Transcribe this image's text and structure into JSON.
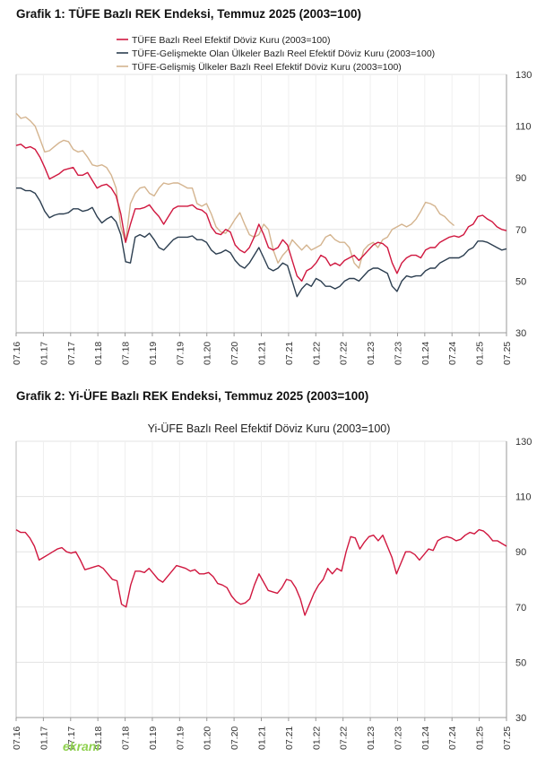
{
  "headings": {
    "chart1": "Grafik 1: TÜFE Bazlı REK Endeksi, Temmuz 2025 (2003=100)",
    "chart2": "Grafik 2: Yi-ÜFE Bazlı REK Endeksi, Temmuz 2025 (2003=100)"
  },
  "logo_text": "ekranı",
  "chart_data": [
    {
      "type": "line",
      "title": "",
      "ylim": [
        30,
        130
      ],
      "yticks": [
        30,
        50,
        70,
        90,
        110,
        130
      ],
      "x_tick_labels": [
        "07.16",
        "01.17",
        "07.17",
        "01.18",
        "07.18",
        "01.19",
        "07.19",
        "01.20",
        "07.20",
        "01.21",
        "07.21",
        "01.22",
        "07.22",
        "01.23",
        "07.23",
        "01.24",
        "07.24",
        "01.25",
        "07.25"
      ],
      "grid": true,
      "legend_position": "top-left",
      "series": [
        {
          "name": "TÜFE  Bazlı Reel Efektif Döviz Kuru (2003=100)",
          "color": "#d0173f",
          "values": [
            102.5,
            103,
            101.5,
            102,
            101,
            98,
            94,
            89.5,
            90.5,
            91.5,
            93,
            93.5,
            94,
            91,
            91,
            92,
            89,
            86,
            87,
            87.5,
            86,
            83,
            76,
            65,
            72,
            78,
            78,
            78.5,
            79.5,
            77,
            75,
            72,
            75,
            78,
            79,
            79,
            79,
            79.5,
            78,
            77.5,
            76,
            71,
            68.5,
            68,
            70,
            69,
            64,
            62,
            61,
            63,
            67,
            72,
            68,
            63,
            62,
            63,
            66,
            64,
            58,
            52,
            50,
            54,
            55,
            57,
            60,
            59,
            56,
            57,
            56,
            58,
            59,
            60,
            58,
            60,
            62,
            64,
            65,
            64.5,
            63,
            57,
            53,
            57,
            59,
            60,
            60,
            59,
            62,
            63,
            63,
            65,
            66,
            67,
            67.5,
            67,
            68,
            71,
            72,
            75,
            75.5,
            74,
            73,
            71,
            70,
            69.5
          ]
        },
        {
          "name": "TÜFE-Gelişmekte Olan Ülkeler Bazlı Reel Efektif Döviz Kuru (2003=100)",
          "color": "#2c3e50",
          "values": [
            86,
            86,
            85,
            85,
            84,
            81,
            77,
            74.5,
            75.5,
            76,
            76,
            76.5,
            78,
            78,
            77,
            77.5,
            78.5,
            75,
            72.5,
            74,
            75,
            73,
            68,
            57.5,
            57,
            67,
            68,
            67,
            68.5,
            66,
            63,
            62,
            64,
            66,
            67,
            67,
            67,
            67.5,
            66,
            66,
            65,
            62,
            60.5,
            61,
            62,
            61,
            58,
            56,
            55,
            57,
            60,
            63,
            59,
            55,
            54,
            55,
            57,
            56,
            50,
            44,
            47,
            49,
            48,
            51,
            50,
            48,
            48,
            47,
            48,
            50,
            51,
            51,
            50,
            52,
            54,
            55,
            55,
            54,
            53,
            48,
            46,
            50,
            52,
            51.5,
            52,
            52,
            54,
            55,
            55,
            57,
            58,
            59,
            59,
            59,
            60,
            62,
            63,
            65.5,
            65.5,
            65,
            64,
            63,
            62,
            62.5
          ]
        },
        {
          "name": "TÜFE-Gelişmiş Ülkeler Bazlı Reel Efektif Döviz Kuru (2003=100)",
          "color": "#d4b48f",
          "values": [
            115,
            113,
            113.5,
            112,
            110,
            105,
            100,
            100.5,
            102,
            103.5,
            104.5,
            104,
            101,
            100,
            100.5,
            98,
            95,
            94.5,
            95,
            94,
            91,
            86,
            71,
            65,
            80,
            84,
            86,
            86.5,
            84,
            83,
            86,
            88,
            87.5,
            88,
            88,
            87,
            86,
            86,
            80,
            79,
            80,
            76,
            71,
            69,
            68.5,
            71,
            74,
            76.5,
            72,
            68,
            67,
            68,
            72,
            70,
            62,
            57,
            60,
            62,
            66,
            64,
            62,
            64,
            62,
            63,
            64,
            67,
            68,
            66,
            65,
            65,
            63,
            57,
            55,
            62,
            64,
            65,
            63,
            66,
            67,
            70,
            71,
            72,
            71,
            72,
            74,
            77,
            80.5,
            80,
            79,
            76,
            75,
            73,
            71.5
          ]
        }
      ]
    },
    {
      "type": "line",
      "title": "Yi-ÜFE Bazlı Reel Efektif Döviz Kuru (2003=100)",
      "ylim": [
        30,
        130
      ],
      "yticks": [
        30,
        50,
        70,
        90,
        110,
        130
      ],
      "x_tick_labels": [
        "07.16",
        "01.17",
        "07.17",
        "01.18",
        "07.18",
        "01.19",
        "07.19",
        "01.20",
        "07.20",
        "01.21",
        "07.21",
        "01.22",
        "07.22",
        "01.23",
        "07.23",
        "01.24",
        "07.24",
        "01.25",
        "07.25"
      ],
      "grid": true,
      "series": [
        {
          "name": "",
          "color": "#d0173f",
          "values": [
            98,
            97,
            97,
            95,
            92,
            87,
            88,
            89,
            90,
            91,
            91.5,
            90,
            89.5,
            90,
            87,
            83.5,
            84,
            84.5,
            85,
            84,
            82,
            80,
            79.5,
            71,
            70,
            78,
            83,
            83,
            82.5,
            84,
            82,
            80,
            79,
            81,
            83,
            85,
            84.5,
            84,
            83,
            83.5,
            82,
            82,
            82.5,
            81,
            78.5,
            78,
            77,
            74,
            72,
            71,
            71.5,
            73,
            78,
            82,
            79,
            76,
            75.5,
            75,
            77,
            80,
            79.5,
            77,
            73,
            67,
            71,
            75,
            78,
            80,
            84,
            82,
            84,
            83,
            90,
            95.5,
            95,
            91,
            93.5,
            95.5,
            96,
            94,
            96,
            92,
            88,
            82,
            86,
            90,
            90,
            89,
            87,
            89,
            91,
            90.5,
            94,
            95,
            95.5,
            95,
            94,
            94.5,
            96,
            97,
            96.5,
            98,
            97.5,
            96,
            94,
            94,
            93,
            92
          ]
        }
      ]
    }
  ]
}
